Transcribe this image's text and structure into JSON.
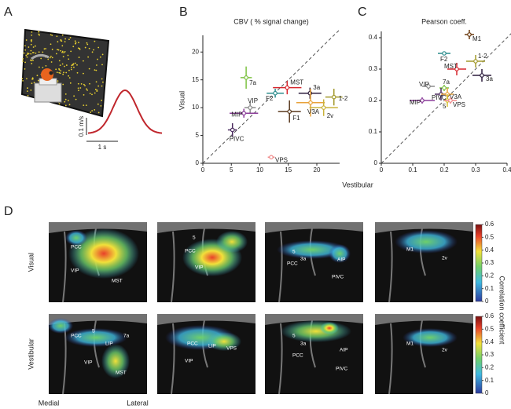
{
  "panel_labels": [
    "A",
    "B",
    "C",
    "D"
  ],
  "panel_a": {
    "velocity_scale": "0.1 m/s",
    "time_scale": "1 s"
  },
  "chart_data": [
    {
      "type": "scatter",
      "title": "CBV ( % signal change)",
      "ylabel": "Visual",
      "point_labels": [
        "7a",
        "MST",
        "3a",
        "F2",
        "1-2",
        "F1",
        "V3A",
        "2v",
        "VIP",
        "MIP",
        "PIVC",
        "VPS"
      ],
      "colors": [
        "#7dc242",
        "#d6272e",
        "#2b1b3c",
        "#2b8c8c",
        "#a39a2d",
        "#5a3a1e",
        "#e8a23a",
        "#c9b23a",
        "#8a8a8a",
        "#8b3d9a",
        "#4a2a5e",
        "#f08a8a"
      ],
      "x": [
        7.6,
        14.8,
        18.8,
        12.7,
        23,
        15.2,
        18.9,
        21.2,
        8.3,
        7.2,
        5.2,
        12
      ],
      "values": [
        15.4,
        13.6,
        12.6,
        12.6,
        11.9,
        9.3,
        10.9,
        10,
        10,
        9,
        6,
        1.1
      ],
      "xerr": [
        1,
        2.5,
        2,
        1.5,
        1.5,
        2,
        2.5,
        2.5,
        1,
        2.5,
        0.8,
        0.6
      ],
      "yerr": [
        2,
        1.2,
        1,
        0.8,
        1.5,
        2,
        2.5,
        1.5,
        1,
        0.8,
        1.2,
        0.3
      ],
      "xlim": [
        0,
        24
      ],
      "ylim": [
        0,
        23
      ],
      "xticks": [
        0,
        5,
        10,
        15,
        20
      ],
      "yticks": [
        0,
        5,
        10,
        15,
        20
      ]
    },
    {
      "type": "scatter",
      "title": "Pearson coeff.",
      "xlabel": "Vestibular",
      "point_labels": [
        "M1",
        "F2",
        "1-2",
        "MST",
        "3a",
        "7a",
        "VIP",
        "PIVC",
        "V3A",
        "5",
        "VPS",
        "MIP"
      ],
      "colors": [
        "#6b3a10",
        "#2b8c8c",
        "#a39a2d",
        "#d6272e",
        "#2b1b3c",
        "#7dc242",
        "#8a8a8a",
        "#4a2a5e",
        "#e8a23a",
        "#d4c030",
        "#f08a8a",
        "#8b3d9a"
      ],
      "x": [
        0.28,
        0.2,
        0.3,
        0.24,
        0.32,
        0.2,
        0.15,
        0.19,
        0.21,
        0.21,
        0.22,
        0.13
      ],
      "values": [
        0.41,
        0.35,
        0.325,
        0.3,
        0.28,
        0.24,
        0.245,
        0.22,
        0.22,
        0.2,
        0.2,
        0.2
      ],
      "xerr": [
        0.015,
        0.02,
        0.03,
        0.03,
        0.03,
        0.015,
        0.02,
        0.02,
        0.02,
        0.01,
        0.02,
        0.04
      ],
      "yerr": [
        0.015,
        0.005,
        0.02,
        0.02,
        0.02,
        0.01,
        0.01,
        0.02,
        0.02,
        0.02,
        0.01,
        0.01
      ],
      "xlim": [
        0,
        0.4
      ],
      "ylim": [
        0,
        0.42
      ],
      "xticks": [
        0,
        0.1,
        0.2,
        0.3,
        0.4
      ],
      "yticks": [
        0,
        0.1,
        0.2,
        0.3,
        0.4
      ]
    }
  ],
  "panel_d": {
    "row_labels": [
      "Visual",
      "Vestibular"
    ],
    "medial": "Medial",
    "lateral": "Lateral",
    "colorbar_label": "Correlation coefficient",
    "colorbar_lim": [
      0,
      0.6
    ],
    "colorbar_ticks": [
      0,
      0.1,
      0.2,
      0.3,
      0.4,
      0.5,
      0.6
    ],
    "images": [
      [
        [
          "PCC",
          "VIP",
          "MST"
        ],
        [
          "5",
          "PCC",
          "VIP"
        ],
        [
          "5",
          "3a",
          "PCC",
          "AIP",
          "PIVC"
        ],
        [
          "M1",
          "2v"
        ]
      ],
      [
        [
          "PCC",
          "5",
          "7a",
          "LIP",
          "VIP",
          "MST"
        ],
        [
          "PCC",
          "LIP",
          "VPS",
          "VIP"
        ],
        [
          "5",
          "3a",
          "PCC",
          "AIP",
          "PIVC"
        ],
        [
          "M1",
          "2v"
        ]
      ]
    ]
  }
}
